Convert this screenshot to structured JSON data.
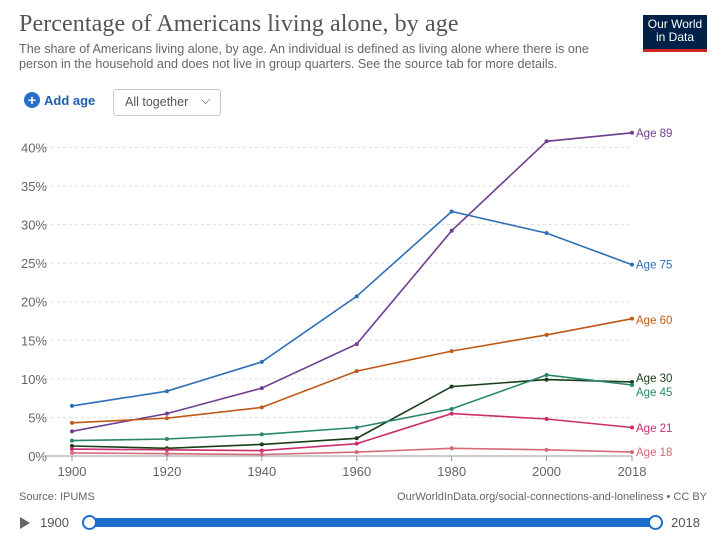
{
  "header": {
    "title": "Percentage of Americans living alone, by age",
    "subtitle": "The share of Americans living alone, by age. An individual is defined as living alone where there is one person in the household and does not live in group quarters. See the source tab for more details.",
    "logo_line1": "Our World",
    "logo_line2": "in Data"
  },
  "controls": {
    "add_label": "Add age",
    "plus_glyph": "+",
    "select_value": "All together",
    "chevron": "⌵"
  },
  "footer": {
    "source": "Source: IPUMS",
    "credit": "OurWorldInData.org/social-connections-and-loneliness • CC BY"
  },
  "timeline": {
    "start": "1900",
    "end": "2018"
  },
  "chart_data": {
    "type": "line",
    "title": "Percentage of Americans living alone, by age",
    "xlabel": "",
    "ylabel": "",
    "x": [
      1900,
      1920,
      1940,
      1960,
      1980,
      2000,
      2018
    ],
    "xlim": [
      1896,
      2018
    ],
    "ylim": [
      0,
      42
    ],
    "yticks": [
      0,
      5,
      10,
      15,
      20,
      25,
      30,
      35,
      40
    ],
    "ytick_labels": [
      "0%",
      "5%",
      "10%",
      "15%",
      "20%",
      "25%",
      "30%",
      "35%",
      "40%"
    ],
    "xtick_labels": [
      "1900",
      "1920",
      "1940",
      "1960",
      "1980",
      "2000",
      "2018"
    ],
    "grid": true,
    "series": [
      {
        "name": "Age 89",
        "color": "#6d3e91",
        "values": [
          3.2,
          5.5,
          8.8,
          14.5,
          29.2,
          40.8,
          41.9
        ]
      },
      {
        "name": "Age 75",
        "color": "#2c6fb7",
        "values": [
          6.5,
          8.4,
          12.2,
          20.7,
          31.7,
          28.9,
          24.8
        ]
      },
      {
        "name": "Age 60",
        "color": "#c05917",
        "values": [
          4.3,
          4.9,
          6.3,
          11.0,
          13.6,
          15.7,
          17.8
        ]
      },
      {
        "name": "Age 30",
        "color": "#173e16",
        "values": [
          1.3,
          1.0,
          1.5,
          2.3,
          9.0,
          9.9,
          9.6
        ]
      },
      {
        "name": "Age 45",
        "color": "#28866e",
        "values": [
          2.0,
          2.2,
          2.8,
          3.7,
          6.1,
          10.5,
          9.2
        ]
      },
      {
        "name": "Age 21",
        "color": "#cc2d6b",
        "values": [
          0.9,
          0.8,
          0.7,
          1.6,
          5.5,
          4.8,
          3.7
        ]
      },
      {
        "name": "Age 18",
        "color": "#d46a7a",
        "values": [
          0.4,
          0.3,
          0.2,
          0.5,
          1.0,
          0.8,
          0.5
        ]
      }
    ],
    "label_positions": [
      {
        "name": "Age 89",
        "y": 41.9
      },
      {
        "name": "Age 75",
        "y": 24.8
      },
      {
        "name": "Age 60",
        "y": 17.6
      },
      {
        "name": "Age 30",
        "y": 10.1
      },
      {
        "name": "Age 45",
        "y": 8.3
      },
      {
        "name": "Age 21",
        "y": 3.6
      },
      {
        "name": "Age 18",
        "y": 0.5
      }
    ]
  }
}
